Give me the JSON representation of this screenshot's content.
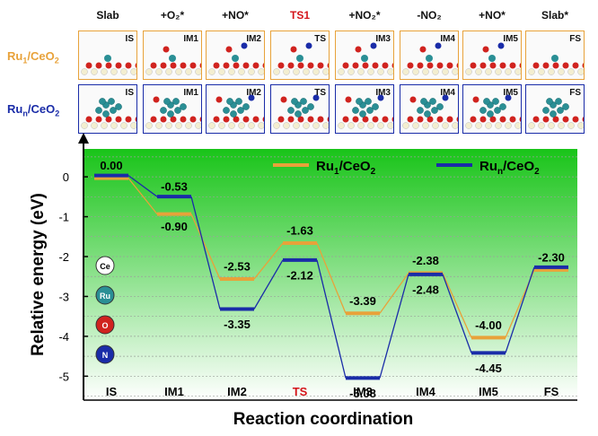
{
  "headers": [
    "Slab",
    "+O₂*",
    "+NO*",
    "TS1",
    "+NO₂*",
    "-NO₂",
    "+NO*",
    "Slab*"
  ],
  "row1": {
    "label_main": "Ru",
    "label_sub": "1",
    "label_end": "/CeO",
    "label_sub2": "2",
    "tags": [
      "IS",
      "IM1",
      "IM2",
      "TS",
      "IM3",
      "IM4",
      "IM5",
      "FS"
    ],
    "color": "#e8a23a"
  },
  "row2": {
    "label_main": "Ru",
    "label_sub": "n",
    "label_end": "/CeO",
    "label_sub2": "2",
    "tags": [
      "IS",
      "IM1",
      "IM2",
      "TS",
      "IM3",
      "IM4",
      "IM5",
      "FS"
    ],
    "color": "#1a2ca8"
  },
  "atoms": [
    {
      "label": "Ce",
      "color": "#ffffff",
      "text": "#000000"
    },
    {
      "label": "Ru",
      "color": "#2a8f95",
      "text": "#ffffff"
    },
    {
      "label": "O",
      "color": "#d0231f",
      "text": "#ffffff"
    },
    {
      "label": "N",
      "color": "#1a2ca8",
      "text": "#ffffff"
    }
  ],
  "chart_data": {
    "type": "line",
    "style": "energy-level-diagram",
    "categories": [
      "IS",
      "IM1",
      "IM2",
      "TS",
      "IM3",
      "IM4",
      "IM5",
      "FS"
    ],
    "category_colors": [
      "#000000",
      "#000000",
      "#000000",
      "#d4141a",
      "#000000",
      "#000000",
      "#000000",
      "#000000"
    ],
    "series": [
      {
        "name": "Ru1/CeO2",
        "name_main": "Ru",
        "name_sub": "1",
        "name_end": "/CeO",
        "name_sub2": "2",
        "color": "#e8a23a",
        "values": [
          0.0,
          -0.9,
          -2.53,
          -1.63,
          -3.39,
          -2.38,
          -4.0,
          -2.3
        ]
      },
      {
        "name": "Run/CeO2",
        "name_main": "Ru",
        "name_sub": "n",
        "name_end": "/CeO",
        "name_sub2": "2",
        "color": "#1a2ca8",
        "values": [
          0.0,
          -0.53,
          -3.35,
          -2.12,
          -5.08,
          -2.48,
          -4.45,
          -2.3
        ]
      }
    ],
    "data_labels": [
      {
        "category": "IS",
        "text": "0.00"
      },
      {
        "category": "IM1",
        "text": "-0.53"
      },
      {
        "category": "IM1",
        "text": "-0.90"
      },
      {
        "category": "IM2",
        "text": "-2.53"
      },
      {
        "category": "IM2",
        "text": "-3.35"
      },
      {
        "category": "TS",
        "text": "-1.63"
      },
      {
        "category": "TS",
        "text": "-2.12"
      },
      {
        "category": "IM3",
        "text": "-3.39"
      },
      {
        "category": "IM3",
        "text": "-5.08"
      },
      {
        "category": "IM4",
        "text": "-2.38"
      },
      {
        "category": "IM4",
        "text": "-2.48"
      },
      {
        "category": "IM5",
        "text": "-4.00"
      },
      {
        "category": "IM5",
        "text": "-4.45"
      },
      {
        "category": "FS",
        "text": "-2.30"
      }
    ],
    "xlabel": "Reaction coordination",
    "ylabel": "Relative energy (eV)",
    "ylim": [
      -5.6,
      0.7
    ],
    "yticks": [
      0,
      -1,
      -2,
      -3,
      -4,
      -5
    ],
    "grid": true,
    "legend_position": "top-right",
    "background_gradient": [
      "#19c419",
      "#ffffff"
    ]
  }
}
